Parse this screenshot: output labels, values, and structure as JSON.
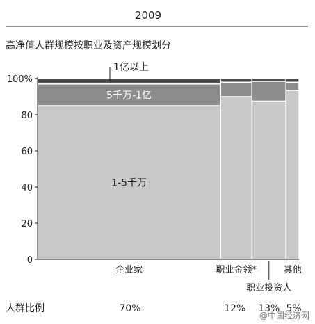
{
  "year": "2009",
  "chart_data": {
    "type": "bar",
    "variant": "marimekko",
    "title": "高净值人群规模按职业及资产规模划分",
    "ylim": [
      0,
      100
    ],
    "y_ticks": [
      "0",
      "20",
      "40",
      "60",
      "80",
      "100%"
    ],
    "categories": [
      "企业家",
      "职业金领*",
      "职业投资人",
      "其他"
    ],
    "widths": [
      70,
      12,
      13,
      5
    ],
    "width_labels": [
      "70%",
      "12%",
      "13%",
      "5%"
    ],
    "width_row_label": "人群比例",
    "series": [
      {
        "name": "1-5千万",
        "values": [
          85,
          90,
          87.5,
          93.5
        ],
        "color": "#c8c8c8"
      },
      {
        "name": "5千万-1亿",
        "values": [
          12,
          8,
          11,
          4.5
        ],
        "color": "#8c8c8c"
      },
      {
        "name": "1亿以上",
        "values": [
          3,
          2,
          1.5,
          2
        ],
        "color": "#4d4d4d"
      }
    ],
    "legend_placement": "inside-first-column"
  },
  "watermark": "@中国经济网"
}
